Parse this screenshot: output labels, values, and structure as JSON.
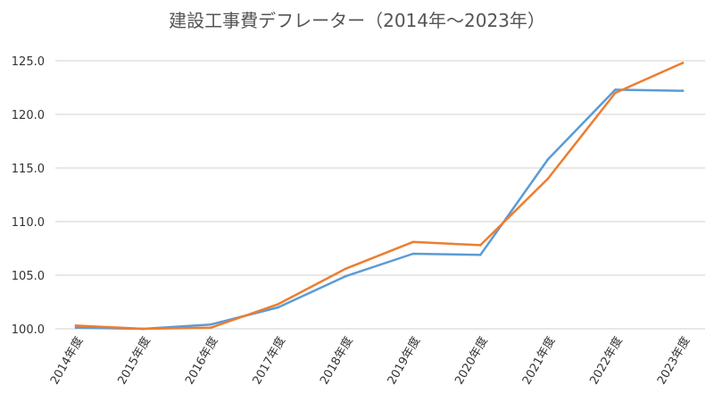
{
  "chart_data": {
    "type": "line",
    "title": "建設工事費デフレーター（2014年～2023年）",
    "xlabel": "",
    "ylabel": "",
    "categories": [
      "2014年度",
      "2015年度",
      "2016年度",
      "2017年度",
      "2018年度",
      "2019年度",
      "2020年度",
      "2021年度",
      "2022年度",
      "2023年度"
    ],
    "ylim": [
      100,
      125
    ],
    "yticks": [
      "100.0",
      "105.0",
      "110.0",
      "115.0",
      "120.0",
      "125.0"
    ],
    "grid": true,
    "series": [
      {
        "color": "#5b9bd5",
        "values": [
          100.1,
          100.0,
          100.4,
          102.0,
          104.9,
          107.0,
          106.9,
          115.8,
          122.3,
          122.2
        ]
      },
      {
        "color": "#ed7d31",
        "values": [
          100.3,
          100.0,
          100.1,
          102.3,
          105.6,
          108.1,
          107.8,
          114.0,
          122.0,
          124.8
        ]
      }
    ]
  }
}
